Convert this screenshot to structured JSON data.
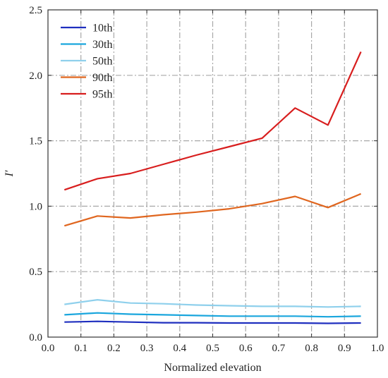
{
  "chart_data": {
    "type": "line",
    "xlabel": "Normalized elevation",
    "ylabel": "I′",
    "xlim": [
      0.0,
      1.0
    ],
    "ylim": [
      0.0,
      2.5
    ],
    "xticks": [
      "0.0",
      "0.1",
      "0.2",
      "0.3",
      "0.4",
      "0.5",
      "0.6",
      "0.7",
      "0.8",
      "0.9",
      "1.0"
    ],
    "yticks": [
      "0.0",
      "0.5",
      "1.0",
      "1.5",
      "2.0",
      "2.5"
    ],
    "grid": true,
    "legend_position": "top-left",
    "x": [
      0.05,
      0.15,
      0.25,
      0.35,
      0.45,
      0.55,
      0.65,
      0.75,
      0.85,
      0.95
    ],
    "series": [
      {
        "name": "10th",
        "color": "#1f2fbf",
        "values": [
          0.115,
          0.12,
          0.115,
          0.11,
          0.11,
          0.108,
          0.108,
          0.108,
          0.105,
          0.108
        ]
      },
      {
        "name": "30th",
        "color": "#1aa6dd",
        "values": [
          0.17,
          0.185,
          0.175,
          0.17,
          0.165,
          0.16,
          0.16,
          0.16,
          0.155,
          0.16
        ]
      },
      {
        "name": "50th",
        "color": "#8fd0ec",
        "values": [
          0.25,
          0.285,
          0.26,
          0.255,
          0.245,
          0.24,
          0.235,
          0.235,
          0.23,
          0.235
        ]
      },
      {
        "name": "90th",
        "color": "#e0661f",
        "values": [
          0.85,
          0.925,
          0.91,
          0.935,
          0.955,
          0.98,
          1.02,
          1.075,
          0.99,
          1.095
        ]
      },
      {
        "name": "95th",
        "color": "#d81e1e",
        "values": [
          1.125,
          1.21,
          1.25,
          1.32,
          1.39,
          1.455,
          1.52,
          1.75,
          1.62,
          2.18
        ]
      }
    ]
  }
}
